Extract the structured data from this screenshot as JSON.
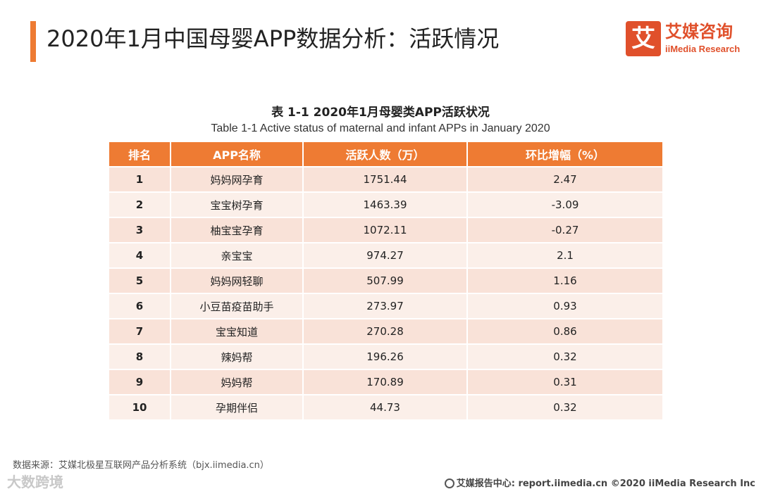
{
  "header": {
    "title": "2020年1月中国母婴APP数据分析：活跃情况",
    "accent_color": "#ee7b33"
  },
  "logo": {
    "mark": "艾",
    "name_cn": "艾媒咨询",
    "name_en": "iiMedia Research",
    "color": "#e0502b"
  },
  "table": {
    "caption_cn": "表 1-1 2020年1月母婴类APP活跃状况",
    "caption_en": "Table 1-1 Active status of maternal and infant APPs in January 2020",
    "columns": [
      "排名",
      "APP名称",
      "活跃人数（万）",
      "环比增幅（%）"
    ],
    "rows": [
      {
        "rank": "1",
        "name": "妈妈网孕育",
        "active": "1751.44",
        "growth": "2.47"
      },
      {
        "rank": "2",
        "name": "宝宝树孕育",
        "active": "1463.39",
        "growth": "-3.09"
      },
      {
        "rank": "3",
        "name": "柚宝宝孕育",
        "active": "1072.11",
        "growth": "-0.27"
      },
      {
        "rank": "4",
        "name": "亲宝宝",
        "active": "974.27",
        "growth": "2.1"
      },
      {
        "rank": "5",
        "name": "妈妈网轻聊",
        "active": "507.99",
        "growth": "1.16"
      },
      {
        "rank": "6",
        "name": "小豆苗疫苗助手",
        "active": "273.97",
        "growth": "0.93"
      },
      {
        "rank": "7",
        "name": "宝宝知道",
        "active": "270.28",
        "growth": "0.86"
      },
      {
        "rank": "8",
        "name": "辣妈帮",
        "active": "196.26",
        "growth": "0.32"
      },
      {
        "rank": "9",
        "name": "妈妈帮",
        "active": "170.89",
        "growth": "0.31"
      },
      {
        "rank": "10",
        "name": "孕期伴侣",
        "active": "44.73",
        "growth": "0.32"
      }
    ]
  },
  "footer": {
    "source": "数据来源：艾媒北极星互联网产品分析系统（bjx.iimedia.cn）",
    "watermark": "大数跨境",
    "copyright": "艾媒报告中心: report.iimedia.cn ©2020 iiMedia Research Inc"
  }
}
